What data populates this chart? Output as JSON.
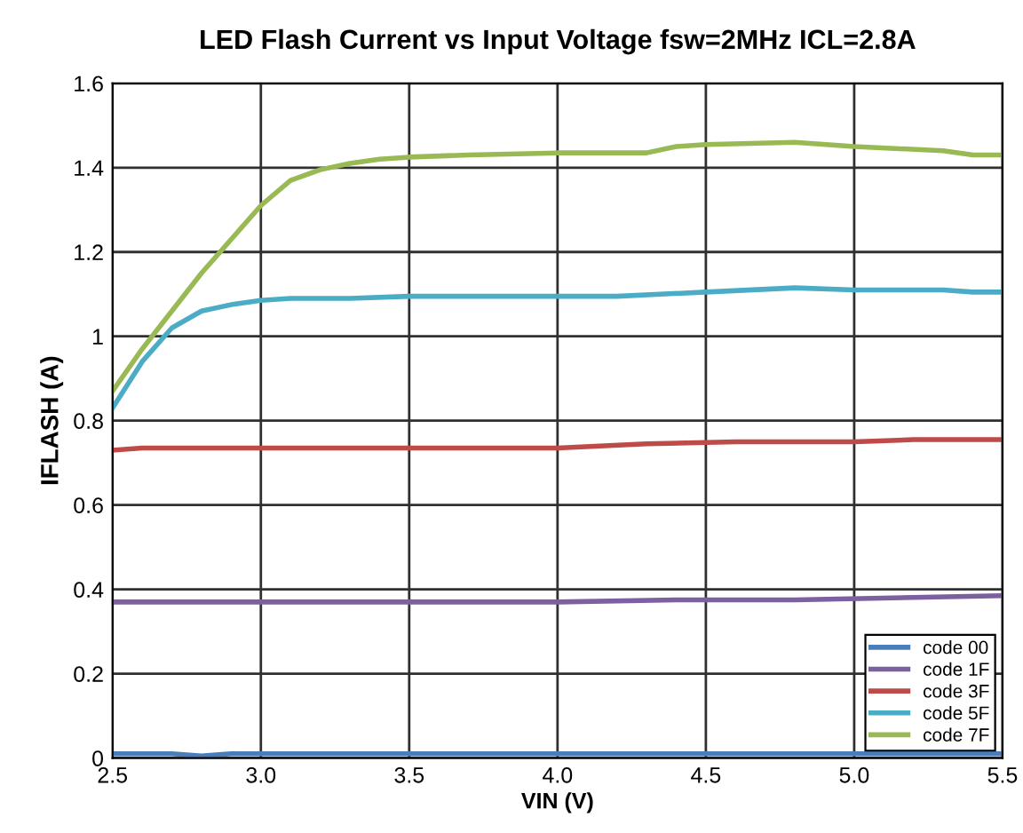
{
  "chart_data": {
    "type": "line",
    "title": "LED Flash Current vs Input Voltage fsw=2MHz ICL=2.8A",
    "xlabel": "VIN (V)",
    "ylabel": "IFLASH (A)",
    "xlim": [
      2.5,
      5.5
    ],
    "xticks": [
      {
        "value": 2.5,
        "label": "2.5"
      },
      {
        "value": 3.0,
        "label": "3.0"
      },
      {
        "value": 3.5,
        "label": "3.5"
      },
      {
        "value": 4.0,
        "label": "4.0"
      },
      {
        "value": 4.5,
        "label": "4.5"
      },
      {
        "value": 5.0,
        "label": "5.0"
      },
      {
        "value": 5.5,
        "label": "5.5"
      }
    ],
    "ylim": [
      0,
      1.6
    ],
    "yticks": [
      {
        "value": 0,
        "label": "0"
      },
      {
        "value": 0.2,
        "label": "0.2"
      },
      {
        "value": 0.4,
        "label": "0.4"
      },
      {
        "value": 0.6,
        "label": "0.6"
      },
      {
        "value": 0.8,
        "label": "0.8"
      },
      {
        "value": 1,
        "label": "1"
      },
      {
        "value": 1.2,
        "label": "1.2"
      },
      {
        "value": 1.4,
        "label": "1.4"
      },
      {
        "value": 1.6,
        "label": "1.6"
      }
    ],
    "grid": true,
    "legend": "bottom right",
    "marker": "none",
    "line_style": "solid",
    "series": [
      {
        "name": "code 00",
        "color": "#4a7ebb",
        "x": [
          2.5,
          2.7,
          2.8,
          2.9,
          3.5,
          4.0,
          4.5,
          5.0,
          5.5
        ],
        "values": [
          0.01,
          0.01,
          0.005,
          0.01,
          0.01,
          0.01,
          0.01,
          0.01,
          0.01
        ]
      },
      {
        "name": "code 1F",
        "color": "#7d60a0",
        "x": [
          2.5,
          3.0,
          3.5,
          4.0,
          4.4,
          4.8,
          5.5
        ],
        "values": [
          0.37,
          0.37,
          0.37,
          0.37,
          0.375,
          0.375,
          0.385
        ]
      },
      {
        "name": "code 3F",
        "color": "#be4b48",
        "x": [
          2.5,
          2.6,
          3.0,
          3.5,
          4.0,
          4.3,
          4.6,
          5.0,
          5.2,
          5.5
        ],
        "values": [
          0.73,
          0.735,
          0.735,
          0.735,
          0.735,
          0.745,
          0.75,
          0.75,
          0.755,
          0.755
        ]
      },
      {
        "name": "code 5F",
        "color": "#4bacc6",
        "x": [
          2.5,
          2.6,
          2.7,
          2.8,
          2.9,
          3.0,
          3.1,
          3.3,
          3.5,
          4.0,
          4.2,
          4.5,
          4.8,
          5.0,
          5.3,
          5.4,
          5.5
        ],
        "values": [
          0.83,
          0.94,
          1.02,
          1.06,
          1.075,
          1.085,
          1.09,
          1.09,
          1.095,
          1.095,
          1.095,
          1.105,
          1.115,
          1.11,
          1.11,
          1.105,
          1.105
        ]
      },
      {
        "name": "code 7F",
        "color": "#98b954",
        "x": [
          2.5,
          2.6,
          2.7,
          2.8,
          2.9,
          3.0,
          3.1,
          3.2,
          3.3,
          3.4,
          3.5,
          3.7,
          4.0,
          4.3,
          4.4,
          4.5,
          4.8,
          5.0,
          5.3,
          5.4,
          5.5
        ],
        "values": [
          0.87,
          0.97,
          1.06,
          1.15,
          1.23,
          1.31,
          1.37,
          1.395,
          1.41,
          1.42,
          1.425,
          1.43,
          1.435,
          1.435,
          1.45,
          1.455,
          1.46,
          1.45,
          1.44,
          1.43,
          1.43
        ]
      }
    ]
  }
}
